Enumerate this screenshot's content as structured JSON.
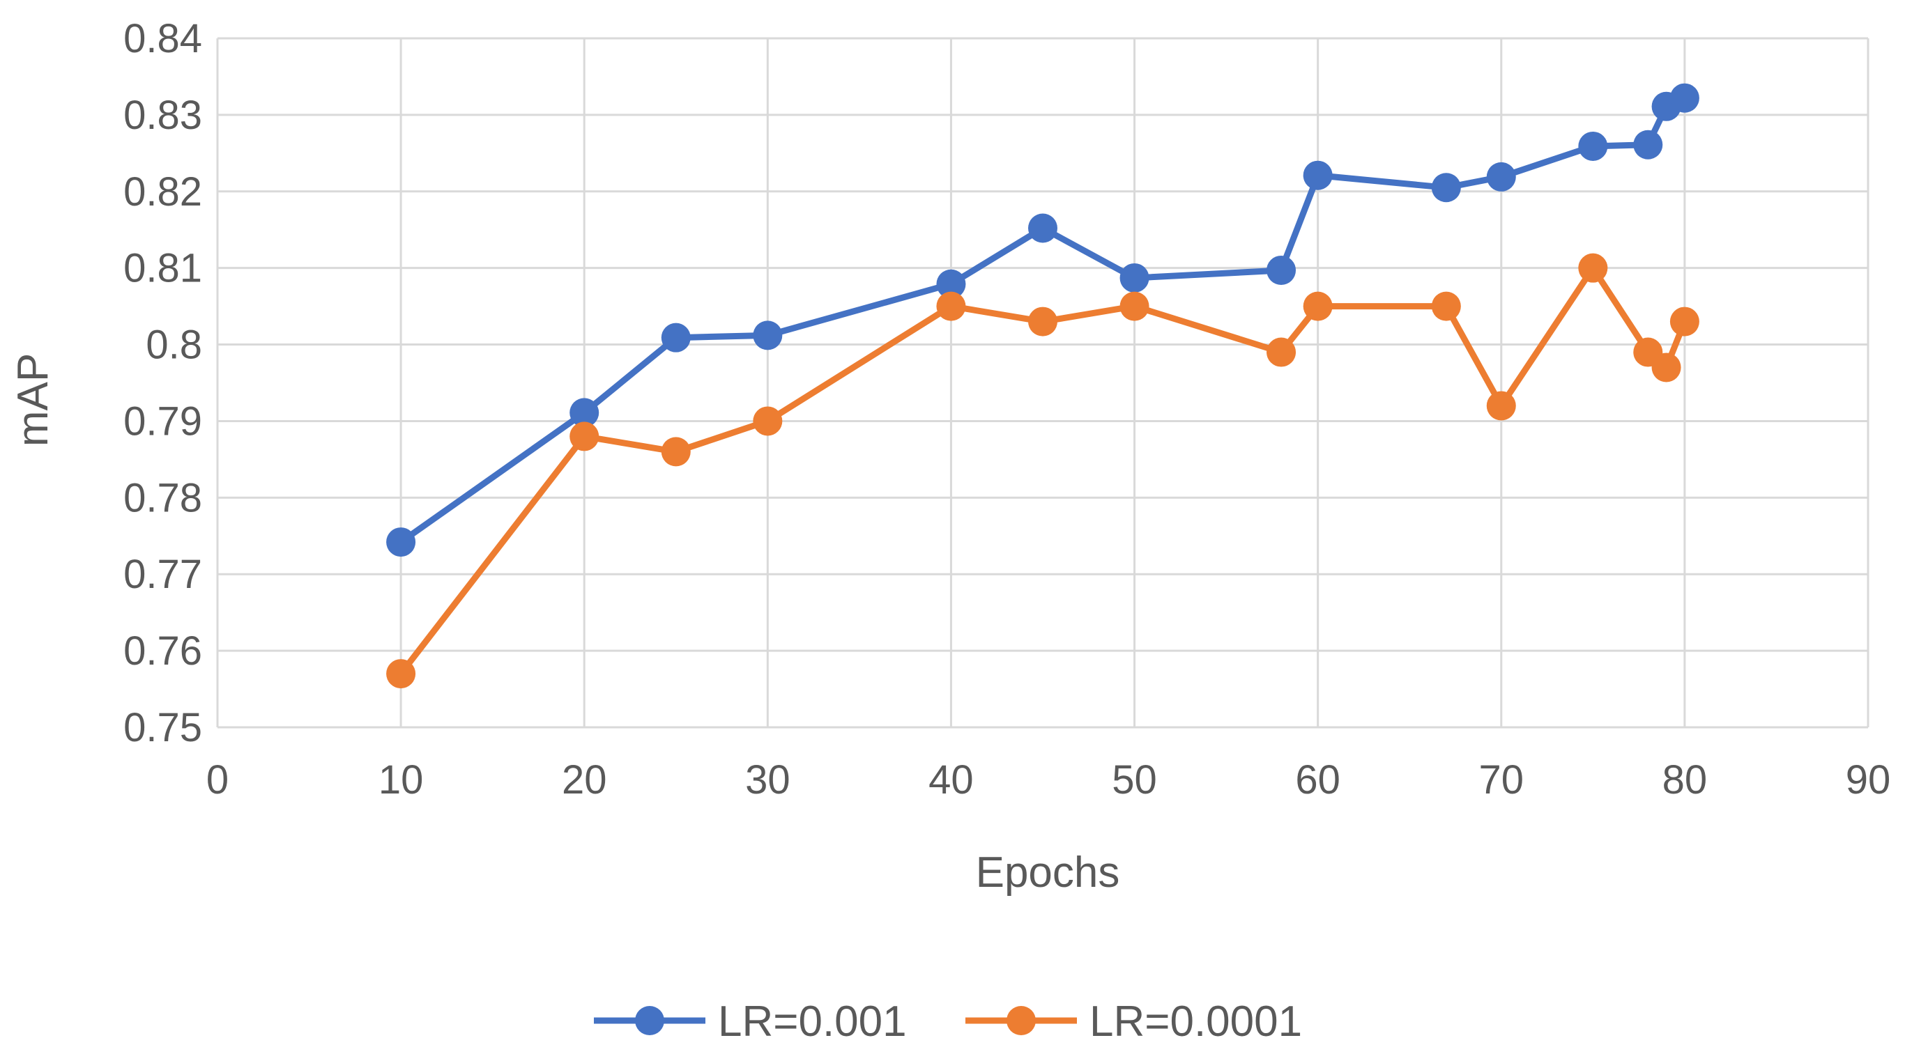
{
  "chart_data": {
    "type": "line",
    "title": "",
    "xlabel": "Epochs",
    "ylabel": "mAP",
    "xlim": [
      0,
      90
    ],
    "ylim": [
      0.75,
      0.84
    ],
    "xticks": [
      0,
      10,
      20,
      30,
      40,
      50,
      60,
      70,
      80,
      90
    ],
    "yticks": [
      0.75,
      0.76,
      0.77,
      0.78,
      0.79,
      0.8,
      0.81,
      0.82,
      0.83,
      0.84
    ],
    "xtick_labels": [
      "0",
      "10",
      "20",
      "30",
      "40",
      "50",
      "60",
      "70",
      "80",
      "90"
    ],
    "ytick_labels": [
      "0.75",
      "0.76",
      "0.77",
      "0.78",
      "0.79",
      "0.8",
      "0.81",
      "0.82",
      "0.83",
      "0.84"
    ],
    "grid": true,
    "legend_position": "bottom",
    "series": [
      {
        "name": "LR=0.001",
        "color": "#4472C4",
        "x": [
          10,
          20,
          25,
          30,
          40,
          45,
          50,
          58,
          60,
          67,
          70,
          75,
          78,
          79,
          80
        ],
        "y": [
          0.7742,
          0.7911,
          0.8009,
          0.8012,
          0.8079,
          0.8152,
          0.8087,
          0.8097,
          0.8221,
          0.8205,
          0.8219,
          0.8259,
          0.8261,
          0.8311,
          0.8322
        ]
      },
      {
        "name": "LR=0.0001",
        "color": "#ED7D31",
        "x": [
          10,
          20,
          25,
          30,
          40,
          45,
          50,
          58,
          60,
          67,
          70,
          75,
          78,
          79,
          80
        ],
        "y": [
          0.757,
          0.788,
          0.786,
          0.79,
          0.805,
          0.803,
          0.805,
          0.799,
          0.805,
          0.805,
          0.792,
          0.81,
          0.799,
          0.797,
          0.803
        ]
      }
    ]
  }
}
